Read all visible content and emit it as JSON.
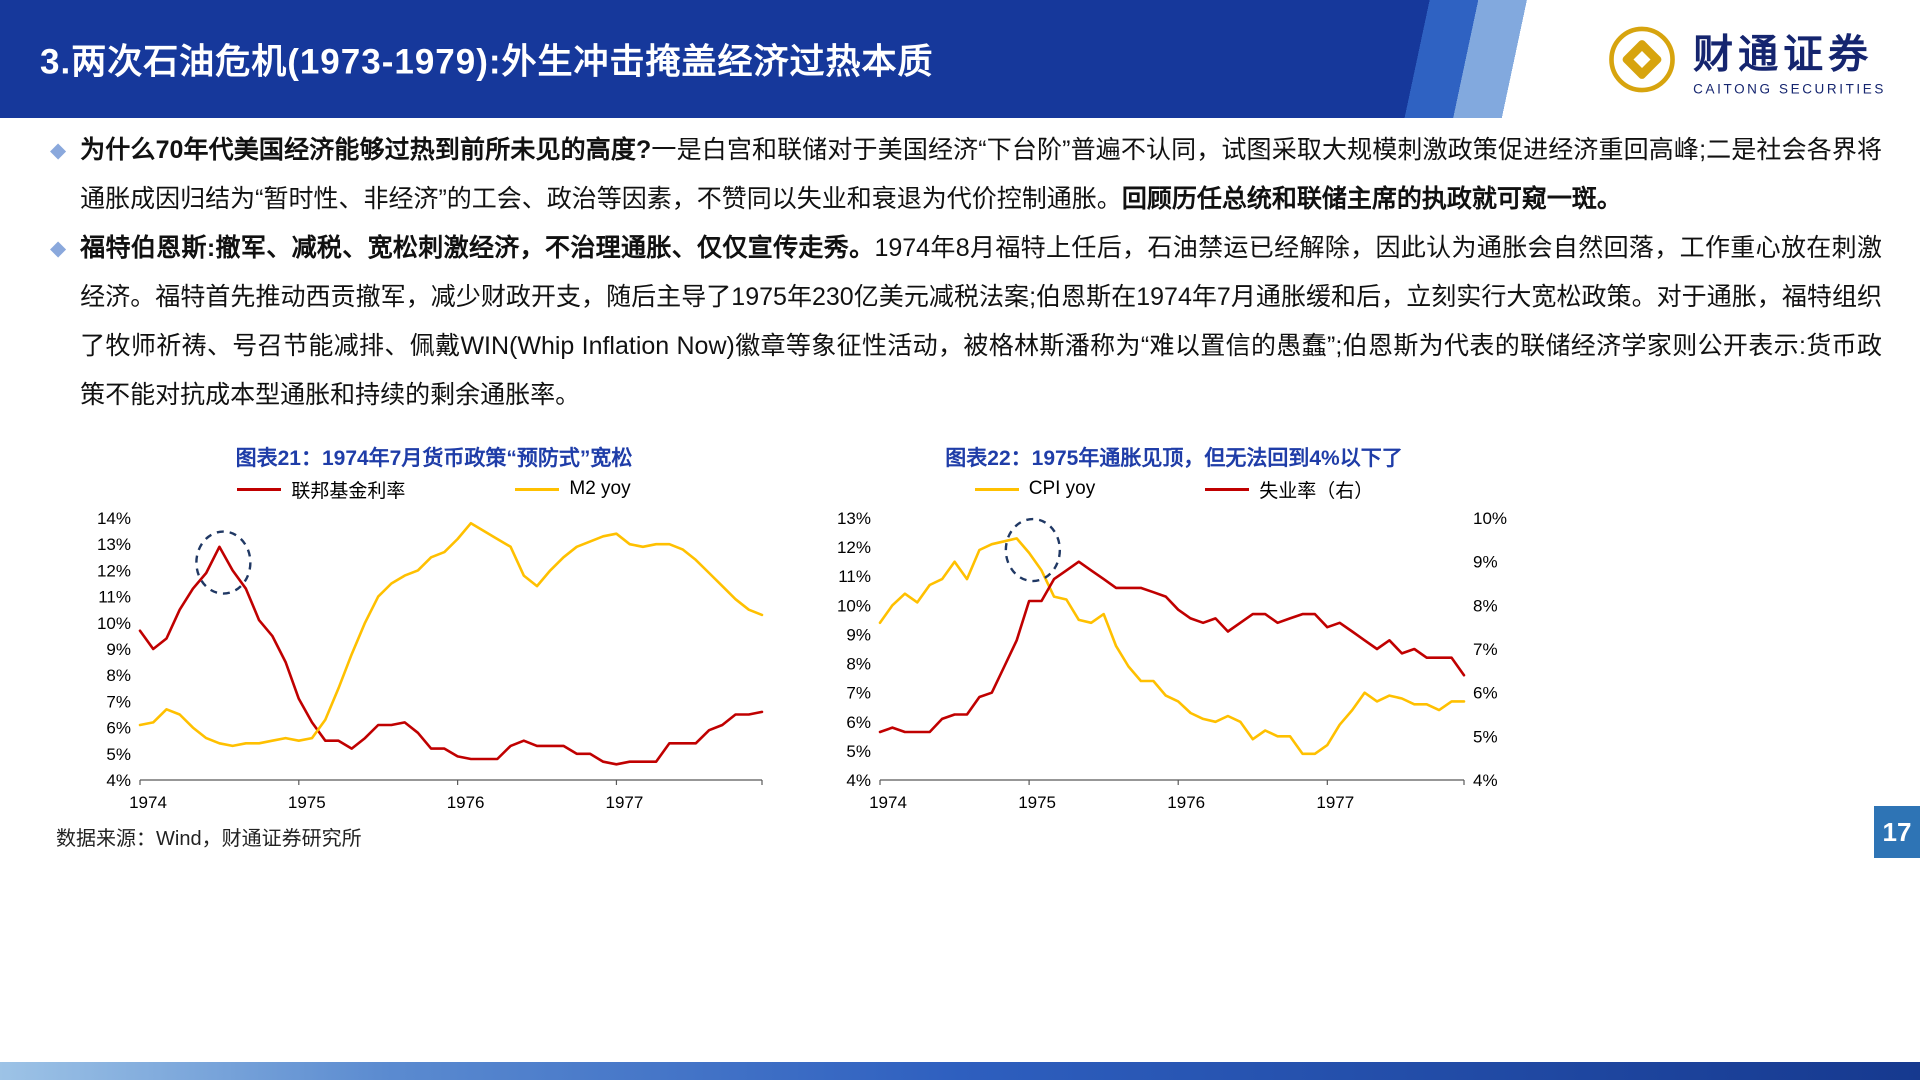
{
  "header": {
    "title": "3.两次石油危机(1973-1979):外生冲击掩盖经济过热本质",
    "logo": {
      "name_cn": "财通证券",
      "name_en": "CAITONG SECURITIES"
    }
  },
  "bullets": [
    {
      "segments": [
        {
          "text": "为什么70年代美国经济能够过热到前所未见的高度?",
          "bold": true
        },
        {
          "text": "一是白宫和联储对于美国经济“下台阶”普遍不认同，试图采取大规模刺激政策促进经济重回高峰;二是社会各界将通胀成因归结为“暂时性、非经济”的工会、政治等因素，不赞同以失业和衰退为代价控制通胀。",
          "bold": false
        },
        {
          "text": "回顾历任总统和联储主席的执政就可窥一斑。",
          "bold": true
        }
      ]
    },
    {
      "segments": [
        {
          "text": "福特伯恩斯:撤军、减税、宽松刺激经济，不治理通胀、仅仅宣传走秀。",
          "bold": true
        },
        {
          "text": "1974年8月福特上任后，石油禁运已经解除，因此认为通胀会自然回落，工作重心放在刺激经济。福特首先推动西贡撤军，减少财政开支，随后主导了1975年230亿美元减税法案;伯恩斯在1974年7月通胀缓和后，立刻实行大宽松政策。对于通胀，福特组织了牧师祈祷、号召节能减排、佩戴WIN(Whip Inflation Now)徽章等象征性活动，被格林斯潘称为“难以置信的愚蠢”;伯恩斯为代表的联储经济学家则公开表示:货币政策不能对抗成本型通胀和持续的剩余通胀率。",
          "bold": false
        }
      ]
    }
  ],
  "chart_data": [
    {
      "type": "line",
      "title": "图表21：1974年7月货币政策“预防式”宽松",
      "x_labels": [
        "1974",
        "1975",
        "1976",
        "1977"
      ],
      "points_per_year": 12,
      "ylim_left": [
        4,
        14
      ],
      "y_tick_format": "percent",
      "grid": false,
      "legend_position": "top",
      "series": [
        {
          "name": "联邦基金利率",
          "color": "#C00000",
          "axis": "left",
          "values": [
            9.7,
            9.0,
            9.4,
            10.5,
            11.3,
            11.9,
            12.9,
            12.0,
            11.3,
            10.1,
            9.5,
            8.5,
            7.1,
            6.2,
            5.5,
            5.5,
            5.2,
            5.6,
            6.1,
            6.1,
            6.2,
            5.8,
            5.2,
            5.2,
            4.9,
            4.8,
            4.8,
            4.8,
            5.3,
            5.5,
            5.3,
            5.3,
            5.3,
            5.0,
            5.0,
            4.7,
            4.6,
            4.7,
            4.7,
            4.7,
            5.4,
            5.4,
            5.4,
            5.9,
            6.1,
            6.5,
            6.5,
            6.6
          ]
        },
        {
          "name": "M2 yoy",
          "color": "#FFC000",
          "axis": "left",
          "values": [
            6.1,
            6.2,
            6.7,
            6.5,
            6.0,
            5.6,
            5.4,
            5.3,
            5.4,
            5.4,
            5.5,
            5.6,
            5.5,
            5.6,
            6.3,
            7.5,
            8.8,
            10.0,
            11.0,
            11.5,
            11.8,
            12.0,
            12.5,
            12.7,
            13.2,
            13.8,
            13.5,
            13.2,
            12.9,
            11.8,
            11.4,
            12.0,
            12.5,
            12.9,
            13.1,
            13.3,
            13.4,
            13.0,
            12.9,
            13.0,
            13.0,
            12.8,
            12.4,
            11.9,
            11.4,
            10.9,
            10.5,
            10.3
          ]
        }
      ],
      "annotation": {
        "shape": "dashed-ellipse",
        "x_month": 6.3,
        "y_value": 12.3,
        "color": "#203864"
      }
    },
    {
      "type": "line",
      "title": "图表22：1975年通胀见顶，但无法回到4%以下了",
      "x_labels": [
        "1974",
        "1975",
        "1976",
        "1977"
      ],
      "points_per_year": 12,
      "ylim_left": [
        4,
        13
      ],
      "ylim_right": [
        4,
        10
      ],
      "y_tick_format": "percent",
      "grid": false,
      "legend_position": "top",
      "series": [
        {
          "name": "CPI yoy",
          "color": "#FFC000",
          "axis": "left",
          "values": [
            9.4,
            10.0,
            10.4,
            10.1,
            10.7,
            10.9,
            11.5,
            10.9,
            11.9,
            12.1,
            12.2,
            12.3,
            11.8,
            11.2,
            10.3,
            10.2,
            9.5,
            9.4,
            9.7,
            8.6,
            7.9,
            7.4,
            7.4,
            6.9,
            6.7,
            6.3,
            6.1,
            6.0,
            6.2,
            6.0,
            5.4,
            5.7,
            5.5,
            5.5,
            4.9,
            4.9,
            5.2,
            5.9,
            6.4,
            7.0,
            6.7,
            6.9,
            6.8,
            6.6,
            6.6,
            6.4,
            6.7,
            6.7
          ]
        },
        {
          "name": "失业率（右）",
          "color": "#C00000",
          "axis": "right",
          "values": [
            5.1,
            5.2,
            5.1,
            5.1,
            5.1,
            5.4,
            5.5,
            5.5,
            5.9,
            6.0,
            6.6,
            7.2,
            8.1,
            8.1,
            8.6,
            8.8,
            9.0,
            8.8,
            8.6,
            8.4,
            8.4,
            8.4,
            8.3,
            8.2,
            7.9,
            7.7,
            7.6,
            7.7,
            7.4,
            7.6,
            7.8,
            7.8,
            7.6,
            7.7,
            7.8,
            7.8,
            7.5,
            7.6,
            7.4,
            7.2,
            7.0,
            7.2,
            6.9,
            7.0,
            6.8,
            6.8,
            6.8,
            6.4
          ]
        }
      ],
      "annotation": {
        "shape": "dashed-ellipse",
        "x_month": 12.3,
        "y_value": 11.9,
        "color": "#203864"
      }
    }
  ],
  "footer": {
    "source": "数据来源：Wind，财通证券研究所",
    "page_number": "17"
  },
  "colors": {
    "header_blue": "#16389B",
    "accent_light_blue": "#82A9DE",
    "chart_red": "#C00000",
    "chart_yellow": "#FFC000",
    "chart_title_blue": "#1F3DA8",
    "annotation_navy": "#203864",
    "logo_gold": "#D7A40E",
    "logo_navy": "#15256F",
    "page_badge_blue": "#2E74B5",
    "bullet_diamond": "#8AA8DC"
  }
}
